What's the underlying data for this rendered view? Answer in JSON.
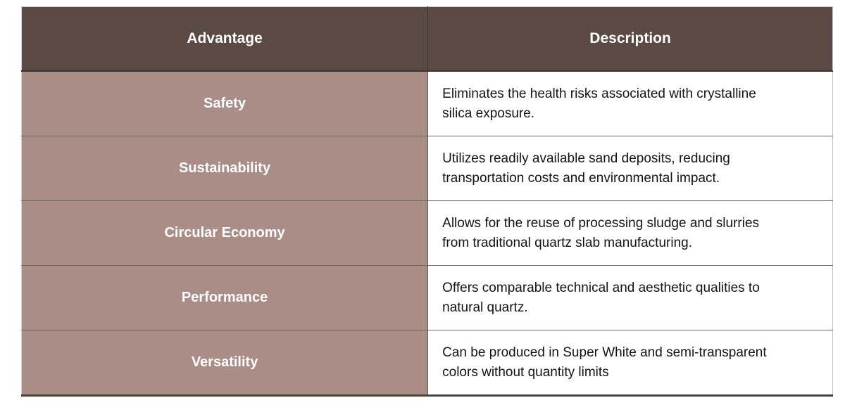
{
  "table": {
    "columns": [
      {
        "label": "Advantage"
      },
      {
        "label": "Description"
      }
    ],
    "rows": [
      {
        "advantage": "Safety",
        "description": "Eliminates the health risks associated with crystalline silica exposure."
      },
      {
        "advantage": "Sustainability",
        "description": "Utilizes readily available sand deposits, reducing transportation costs and environmental impact."
      },
      {
        "advantage": "Circular Economy",
        "description": "Allows for the reuse of processing sludge and slurries from traditional quartz slab manufacturing."
      },
      {
        "advantage": "Performance",
        "description": "Offers comparable technical and aesthetic qualities to natural quartz."
      },
      {
        "advantage": "Versatility",
        "description": "Can be produced in Super White and semi-transparent colors without quantity limits"
      }
    ],
    "colors": {
      "header_bg": "#5a4a43",
      "advantage_cell_bg": "#aa8d86",
      "header_text": "#ffffff",
      "advantage_text": "#ffffff",
      "description_text": "#141414",
      "grid_line": "#6e6864",
      "outer_border": "#d5d0cd",
      "bottom_border": "#474340"
    }
  }
}
